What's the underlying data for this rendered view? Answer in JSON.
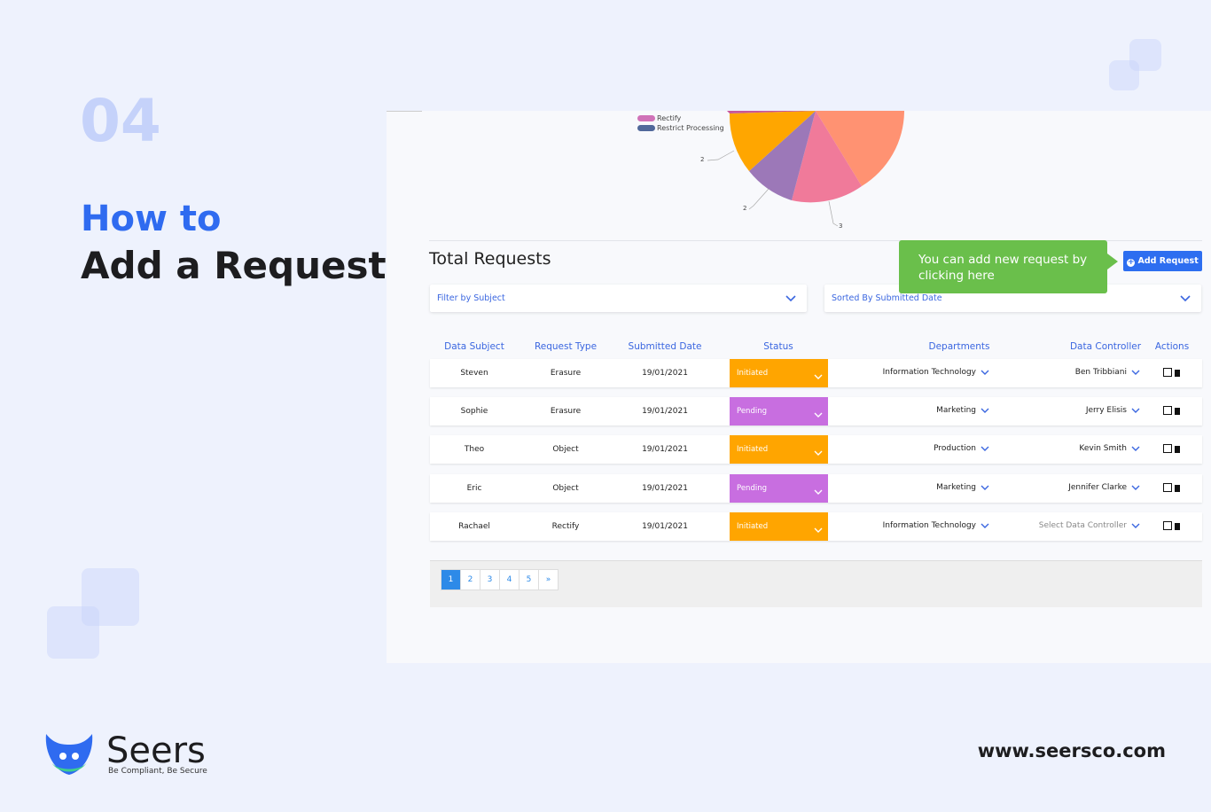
{
  "step": "04",
  "heading": {
    "line1": "How to",
    "line2": "Add a Request"
  },
  "screen": {
    "pie": {
      "legend": [
        "Rectify",
        "Restrict Processing"
      ],
      "labels": [
        2,
        2,
        3
      ]
    },
    "section_title": "Total Requests",
    "tooltip": "You can add new request by clicking here",
    "add_button": "Add Request",
    "filters": [
      "Filter by Subject",
      "Sorted By Submitted Date"
    ],
    "table": {
      "columns": [
        "Data Subject",
        "Request Type",
        "Submitted Date",
        "Status",
        "Departments",
        "Data Controller",
        "Actions"
      ],
      "rows": [
        [
          "Steven",
          "Erasure",
          "19/01/2021",
          "Initiated",
          "Information Technology",
          "Ben Tribbiani"
        ],
        [
          "Sophie",
          "Erasure",
          "19/01/2021",
          "Pending",
          "Marketing",
          "Jerry Elisis"
        ],
        [
          "Theo",
          "Object",
          "19/01/2021",
          "Initiated",
          "Production",
          "Kevin Smith"
        ],
        [
          "Eric",
          "Object",
          "19/01/2021",
          "Pending",
          "Marketing",
          "Jennifer Clarke"
        ],
        [
          "Rachael",
          "Rectify",
          "19/01/2021",
          "Initiated",
          "Information Technology",
          "Select Data Controller"
        ]
      ]
    },
    "pagination": [
      "1",
      "2",
      "3",
      "4",
      "5",
      "»"
    ]
  },
  "footer": {
    "brand": "Seers",
    "tagline": "Be Compliant, Be Secure",
    "url": "www.seersco.com"
  }
}
